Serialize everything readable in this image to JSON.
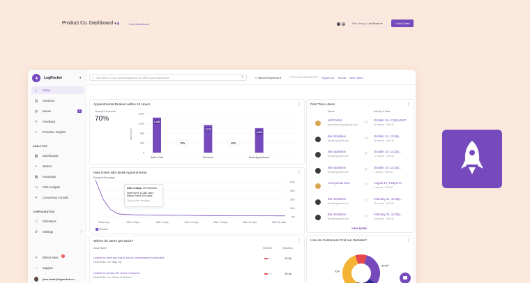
{
  "brand": {
    "name": "LogRocket"
  },
  "sidebar": {
    "items": [
      {
        "label": "Home",
        "icon": "home-icon",
        "active": true
      },
      {
        "label": "Sessions",
        "icon": "sessions-icon"
      },
      {
        "label": "Issues",
        "icon": "issues-icon",
        "badge": "2"
      },
      {
        "label": "Feedback",
        "icon": "feedback-icon"
      },
      {
        "label": "Proactive Insights",
        "icon": "insights-icon"
      }
    ],
    "analytics_label": "ANALYTICS",
    "analytics": [
      {
        "label": "Dashboards",
        "icon": "dashboards-icon"
      },
      {
        "label": "Metrics",
        "icon": "metrics-icon"
      },
      {
        "label": "Heatmaps",
        "icon": "heatmaps-icon"
      },
      {
        "label": "Path Analysis",
        "icon": "path-icon"
      },
      {
        "label": "Conversion Funnels",
        "icon": "funnel-icon"
      }
    ],
    "configuration_label": "CONFIGURATION",
    "configuration": [
      {
        "label": "Definitions",
        "icon": "definitions-icon"
      },
      {
        "label": "Settings",
        "icon": "settings-icon"
      }
    ],
    "whats_new": "What's New",
    "whats_new_count": "4",
    "support": "Support",
    "user_email": "john.lewis@logrocket.co..."
  },
  "topbar": {
    "search_placeholder": "Add filters or use saved segments to refine your dashboard",
    "saved_segments": "Saved Segments",
    "popular_label": "POPULAR SEGMENTS:",
    "popular": [
      "Signed up",
      "Mobile",
      "New Users"
    ]
  },
  "dashboard": {
    "title": "Product Co. Dashboard",
    "new_dashboard": "+ New Dashboard",
    "time_range_label": "Time Range:",
    "time_range_value": "Last Month",
    "add_chart": "+ Add Chart"
  },
  "appointments": {
    "title": "Appointments Booked within 24 Hours",
    "overall_label": "Overall Conversion",
    "overall_value": "70%",
    "ylabel": "User Count",
    "yticks": [
      "1,600",
      "1,200",
      "800",
      "400",
      "0"
    ],
    "ymax": 1600,
    "bars": [
      {
        "label": "Add to Cart",
        "value": 1436,
        "value_label": "1,436"
      },
      {
        "label": "Checkout",
        "value": 1132,
        "value_label": "1,132"
      },
      {
        "label": "Book Appointment",
        "value": 1005,
        "value_label": "1,005"
      }
    ],
    "step_conversions": [
      "79%",
      "89%"
    ]
  },
  "retention": {
    "title": "New Users who Book Appointments",
    "sublabel": "Retention Percentage",
    "yticks": [
      "60%",
      "45%",
      "30%",
      "15%",
      "0%"
    ],
    "xticks": [
      "Same Day",
      "After 5 Days",
      "After 9 days",
      "After 13 days",
      "After 17 days",
      "After 21 days",
      "After 25 days"
    ],
    "legend": "All Users",
    "tooltip": {
      "title": "After 4 days:",
      "value": "4% retention",
      "start": "Start Event: 12,480 users",
      "return": "Return Event: 520 users",
      "hint": "Click to view sessions"
    },
    "ymax": 60,
    "points": [
      78,
      30,
      12,
      5,
      4,
      3.5,
      3.2,
      3,
      2.8,
      2.7,
      2.6,
      2.5,
      2.4,
      2.3,
      2.2,
      2.1,
      2,
      2,
      1.9,
      1.9,
      1.8,
      1.8,
      1.7,
      1.7,
      1.6,
      1.6
    ]
  },
  "first_time_users": {
    "title": "First Time Users",
    "col_name": "Name",
    "col_activity": "Activity & Date",
    "users": [
      {
        "name": "Jeff Probst",
        "email": "jeffprobstsurvey@gmail.com",
        "date": "October 15, 9:33pm EST",
        "events": "61 events · 0:00:32",
        "avatar": "cat"
      },
      {
        "name": "Ben Edelstein",
        "email": "ben@logrocket.com",
        "date": "October 14, 12:48p...",
        "events": "56 events · 0:00:32",
        "avatar": "person"
      },
      {
        "name": "Ben Edelstein",
        "email": "ben@logrocket.com",
        "date": "October 14, 12:32p...",
        "events": "17 events · 0:00:32",
        "avatar": "person"
      },
      {
        "name": "Ben Edelstein",
        "email": "ben@logrocket.com",
        "date": "October 14, 12:14p...",
        "events": "9 events · 0:00:32",
        "avatar": "person"
      },
      {
        "name": "Anonymous User",
        "email": "",
        "date": "August 10, 4:51pm E...",
        "events": "4 events · 0:00:32",
        "avatar": "cat"
      },
      {
        "name": "Ben Edelstein",
        "email": "ben@logrocket.com",
        "date": "February 24, 12:48p...",
        "events": "11 events · 0:00:32",
        "avatar": "person"
      },
      {
        "name": "Ben Edelstein",
        "email": "ben@logrocket.com",
        "date": "February 24, 12:32p...",
        "events": "14 events · 0:00:32",
        "avatar": "person"
      }
    ],
    "view_more": "VIEW MORE"
  },
  "stuck": {
    "title": "Where do users get stuck?",
    "col_issue": "Issue Name",
    "col_severity": "Severity",
    "col_sessions": "Sessions",
    "issues": [
      {
        "name": "Unable to save and log in due to unresponsive button/link",
        "sub": "Dead Click • on \"Sign Up\"",
        "sessions": "15.5k",
        "severity_color": "#e5484d"
      },
      {
        "name": "Unable to access the terms of service",
        "sub": "Dead Click • on \"Terms of Service\"",
        "sessions": "15.4k",
        "severity_color": "#e5484d"
      }
    ]
  },
  "referrals": {
    "title": "How do Customers Find our Website?",
    "slices": [
      {
        "label": "google",
        "value": 30,
        "color": "#764abc"
      },
      {
        "label": "twitter",
        "value": 22,
        "color": "#2b2a8a"
      },
      {
        "label": "facebook",
        "value": 38,
        "color": "#f5b335"
      },
      {
        "label": "",
        "value": 10,
        "color": "#e5484d"
      }
    ]
  },
  "colors": {
    "accent": "#764abc",
    "background": "#fce9dd"
  }
}
